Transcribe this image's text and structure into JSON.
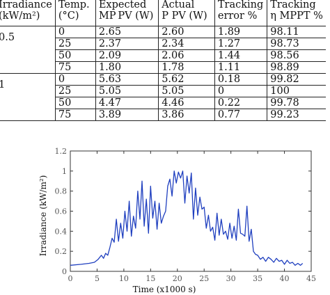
{
  "table": {
    "headers": [
      [
        "Irradiance",
        "(kW/m²)"
      ],
      [
        "Temp.",
        "(°C)"
      ],
      [
        "Expected",
        "MP PV (W)"
      ],
      [
        "Actual",
        "P PV (W)"
      ],
      [
        "Tracking",
        "error %"
      ],
      [
        "Tracking",
        "η MPPT %"
      ]
    ],
    "groups": [
      {
        "irradiance": "0.5",
        "rows": [
          [
            "0",
            "2.65",
            "2.60",
            "1.89",
            "98.11"
          ],
          [
            "25",
            "2.37",
            "2.34",
            "1.27",
            "98.73"
          ],
          [
            "50",
            "2.09",
            "2.06",
            "1.44",
            "98.56"
          ],
          [
            "75",
            "1.80",
            "1.78",
            "1.11",
            "98.89"
          ]
        ]
      },
      {
        "irradiance": "1",
        "rows": [
          [
            "0",
            "5.63",
            "5.62",
            "0.18",
            "99.82"
          ],
          [
            "25",
            "5.05",
            "5.05",
            "0",
            "100"
          ],
          [
            "50",
            "4.47",
            "4.46",
            "0.22",
            "99.78"
          ],
          [
            "75",
            "3.89",
            "3.86",
            "0.77",
            "99.23"
          ]
        ]
      }
    ]
  },
  "chart_data": {
    "type": "line",
    "xlabel": "Time (x1000 s)",
    "ylabel": "Irradiance (kW/m²)",
    "xlim": [
      0,
      45
    ],
    "ylim": [
      0,
      1.2
    ],
    "xticks": [
      "0",
      "5",
      "10",
      "15",
      "20",
      "25",
      "30",
      "35",
      "40",
      "45"
    ],
    "yticks": [
      "0",
      "0.2",
      "0.4",
      "0.6",
      "0.8",
      "1",
      "1.2"
    ],
    "line_color": "#1f3fbf",
    "series": [
      {
        "x": [
          0,
          2,
          3.5,
          4.5,
          5.2,
          5.8,
          6.2,
          6.6,
          7.0,
          7.4,
          7.8,
          8.2,
          8.6,
          9.0,
          9.4,
          9.8,
          10.2,
          10.6,
          11.0,
          11.4,
          11.8,
          12.2,
          12.6,
          13.0,
          13.4,
          13.8,
          14.2,
          14.6,
          15.0,
          15.4,
          15.8,
          16.2,
          16.6,
          17.0,
          17.4,
          17.8,
          18.2,
          18.6,
          19.0,
          19.4,
          19.8,
          20.2,
          20.6,
          21.0,
          21.4,
          21.8,
          22.2,
          22.6,
          23.0,
          23.4,
          23.8,
          24.2,
          24.6,
          25.0,
          25.4,
          25.8,
          26.2,
          26.6,
          27.0,
          27.4,
          27.8,
          28.2,
          28.6,
          29.0,
          29.4,
          29.8,
          30.2,
          30.6,
          31.0,
          31.4,
          31.8,
          32.2,
          32.6,
          33.0,
          33.4,
          33.8,
          34.2,
          34.6,
          35.0,
          35.5,
          36.0,
          36.5,
          37.0,
          37.5,
          38.0,
          38.5,
          39.0,
          39.5,
          40.0,
          40.5,
          41.0,
          41.5,
          42.0,
          42.5,
          43.0,
          43.4
        ],
        "y": [
          0.06,
          0.07,
          0.08,
          0.09,
          0.12,
          0.16,
          0.13,
          0.18,
          0.16,
          0.24,
          0.33,
          0.29,
          0.52,
          0.3,
          0.48,
          0.33,
          0.6,
          0.4,
          0.7,
          0.35,
          0.55,
          0.43,
          0.8,
          0.52,
          0.9,
          0.45,
          0.72,
          0.38,
          0.85,
          0.53,
          0.7,
          0.42,
          0.68,
          0.48,
          0.55,
          0.6,
          0.85,
          0.92,
          0.75,
          1.0,
          0.88,
          0.99,
          0.93,
          1.0,
          0.68,
          0.95,
          0.78,
          0.98,
          0.52,
          0.83,
          0.56,
          0.74,
          0.62,
          0.64,
          0.43,
          0.56,
          0.4,
          0.44,
          0.31,
          0.58,
          0.36,
          0.52,
          0.37,
          0.4,
          0.32,
          0.48,
          0.33,
          0.45,
          0.31,
          0.62,
          0.38,
          0.37,
          0.35,
          0.65,
          0.3,
          0.42,
          0.2,
          0.17,
          0.16,
          0.12,
          0.14,
          0.1,
          0.14,
          0.12,
          0.09,
          0.13,
          0.1,
          0.11,
          0.07,
          0.11,
          0.08,
          0.09,
          0.06,
          0.08,
          0.06,
          0.08
        ]
      }
    ]
  }
}
